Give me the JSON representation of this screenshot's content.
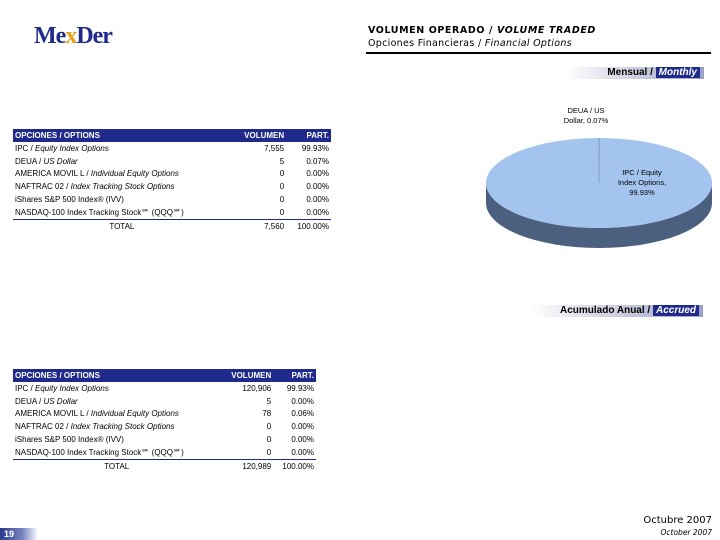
{
  "logo": {
    "part1": "Me",
    "part2": "x",
    "part3": "Der"
  },
  "header": {
    "title_es": "VOLUMEN OPERADO / ",
    "title_en": "VOLUME TRADED",
    "subtitle_es": "Opciones Financieras / ",
    "subtitle_en": "Financial Options"
  },
  "monthly_label": {
    "es": "Mensual / ",
    "en": "Monthly"
  },
  "accrued_label": {
    "es": "Acumulado Anual / ",
    "en": "Accrued"
  },
  "table_headers": {
    "name": "OPCIONES / OPTIONS",
    "volume": "VOLUMEN",
    "part": "PART."
  },
  "monthly_rows": [
    {
      "es": "IPC / ",
      "en": "Equity Index Options",
      "volume": "7,555",
      "part": "99.93%"
    },
    {
      "es": "DEUA / ",
      "en": "US Dollar",
      "volume": "5",
      "part": "0.07%"
    },
    {
      "es": "AMERICA MOVIL L / ",
      "en": "Individual Equity Options",
      "volume": "0",
      "part": "0.00%"
    },
    {
      "es": "NAFTRAC 02 / ",
      "en": "Index Tracking Stock Options",
      "volume": "0",
      "part": "0.00%"
    },
    {
      "es": "iShares S&P 500 Index® (IVV)",
      "en": "",
      "volume": "0",
      "part": "0.00%"
    },
    {
      "es": "NASDAQ-100 Index Tracking Stock℠ (QQQ℠)",
      "en": "",
      "volume": "0",
      "part": "0.00%"
    }
  ],
  "monthly_total": {
    "label": "TOTAL",
    "volume": "7,560",
    "part": "100.00%"
  },
  "accrued_rows": [
    {
      "es": "IPC / ",
      "en": "Equity Index Options",
      "volume": "120,906",
      "part": "99.93%"
    },
    {
      "es": "DEUA / ",
      "en": "US Dollar",
      "volume": "5",
      "part": "0.00%"
    },
    {
      "es": "AMERICA MOVIL L / ",
      "en": "Individual Equity Options",
      "volume": "78",
      "part": "0.06%"
    },
    {
      "es": "NAFTRAC 02 / ",
      "en": "Index Tracking Stock Options",
      "volume": "0",
      "part": "0.00%"
    },
    {
      "es": "iShares S&P 500 Index® (IVV)",
      "en": "",
      "volume": "0",
      "part": "0.00%"
    },
    {
      "es": "NASDAQ-100 Index Tracking Stock℠ (QQQ℠)",
      "en": "",
      "volume": "0",
      "part": "0.00%"
    }
  ],
  "accrued_total": {
    "label": "TOTAL",
    "volume": "120,989",
    "part": "100.00%"
  },
  "chart_data": {
    "type": "pie",
    "categories": [
      "IPC / Equity Index Options",
      "DEUA / US Dollar"
    ],
    "values": [
      99.93,
      0.07
    ],
    "labels": [
      {
        "line1": "IPC / Equity",
        "line2": "Index Options,",
        "line3": "99.93%"
      },
      {
        "line1": "DEUA / US",
        "line2": "Dollar, 0.07%"
      }
    ],
    "colors": {
      "top": "#a4c4f0",
      "side": "#4b5f7e"
    }
  },
  "footer": {
    "month_es": "Octubre 2007",
    "month_en": "October 2007",
    "page": "19"
  },
  "colors": {
    "brand": "#1f2a8c",
    "accent": "#e8a21b"
  }
}
